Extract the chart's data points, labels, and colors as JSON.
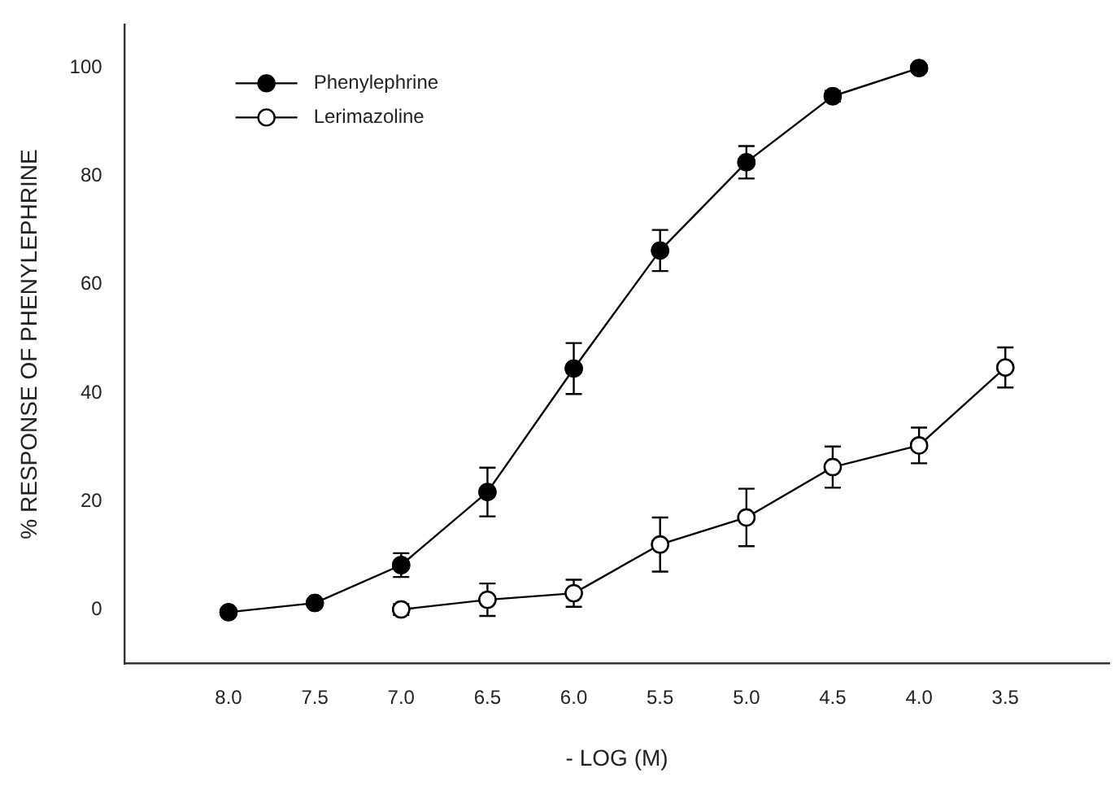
{
  "chart_data": {
    "type": "line",
    "xlabel": "- LOG (M)",
    "ylabel": "% RESPONSE OF PHENYLEPHRINE",
    "x": [
      8.0,
      7.5,
      7.0,
      6.5,
      6.0,
      5.5,
      5.0,
      4.5,
      4.0,
      3.5
    ],
    "xlim": [
      8.6,
      2.9
    ],
    "xticks": [
      {
        "value": 8.0,
        "label": "8.0"
      },
      {
        "value": 7.5,
        "label": "7.5"
      },
      {
        "value": 7.0,
        "label": "7.0"
      },
      {
        "value": 6.5,
        "label": "6.5"
      },
      {
        "value": 6.0,
        "label": "6.0"
      },
      {
        "value": 5.5,
        "label": "5.5"
      },
      {
        "value": 5.0,
        "label": "5.0"
      },
      {
        "value": 4.5,
        "label": "4.5"
      },
      {
        "value": 4.0,
        "label": "4.0"
      },
      {
        "value": 3.5,
        "label": "3.5"
      }
    ],
    "ylim": [
      -10,
      108
    ],
    "yticks": [
      0,
      20,
      40,
      60,
      80,
      100
    ],
    "series": [
      {
        "name": "Phenylephrine",
        "color": "#000000",
        "values": [
          -0.5,
          1.2,
          8.2,
          21.7,
          44.5,
          66.3,
          82.6,
          94.8,
          100,
          null
        ],
        "errors": [
          null,
          null,
          2.2,
          4.5,
          4.7,
          3.8,
          3,
          1,
          null,
          null
        ]
      },
      {
        "name": "Lerimazoline",
        "color": "#ffffff",
        "values": [
          null,
          null,
          0,
          1.8,
          3.0,
          12,
          17,
          26.3,
          30.3,
          44.7
        ],
        "errors": [
          null,
          null,
          1,
          3,
          2.5,
          5,
          5.3,
          3.8,
          3.3,
          3.7
        ]
      }
    ],
    "marker": "circle",
    "line_style": "solid",
    "grid": false,
    "legend": "top left"
  }
}
